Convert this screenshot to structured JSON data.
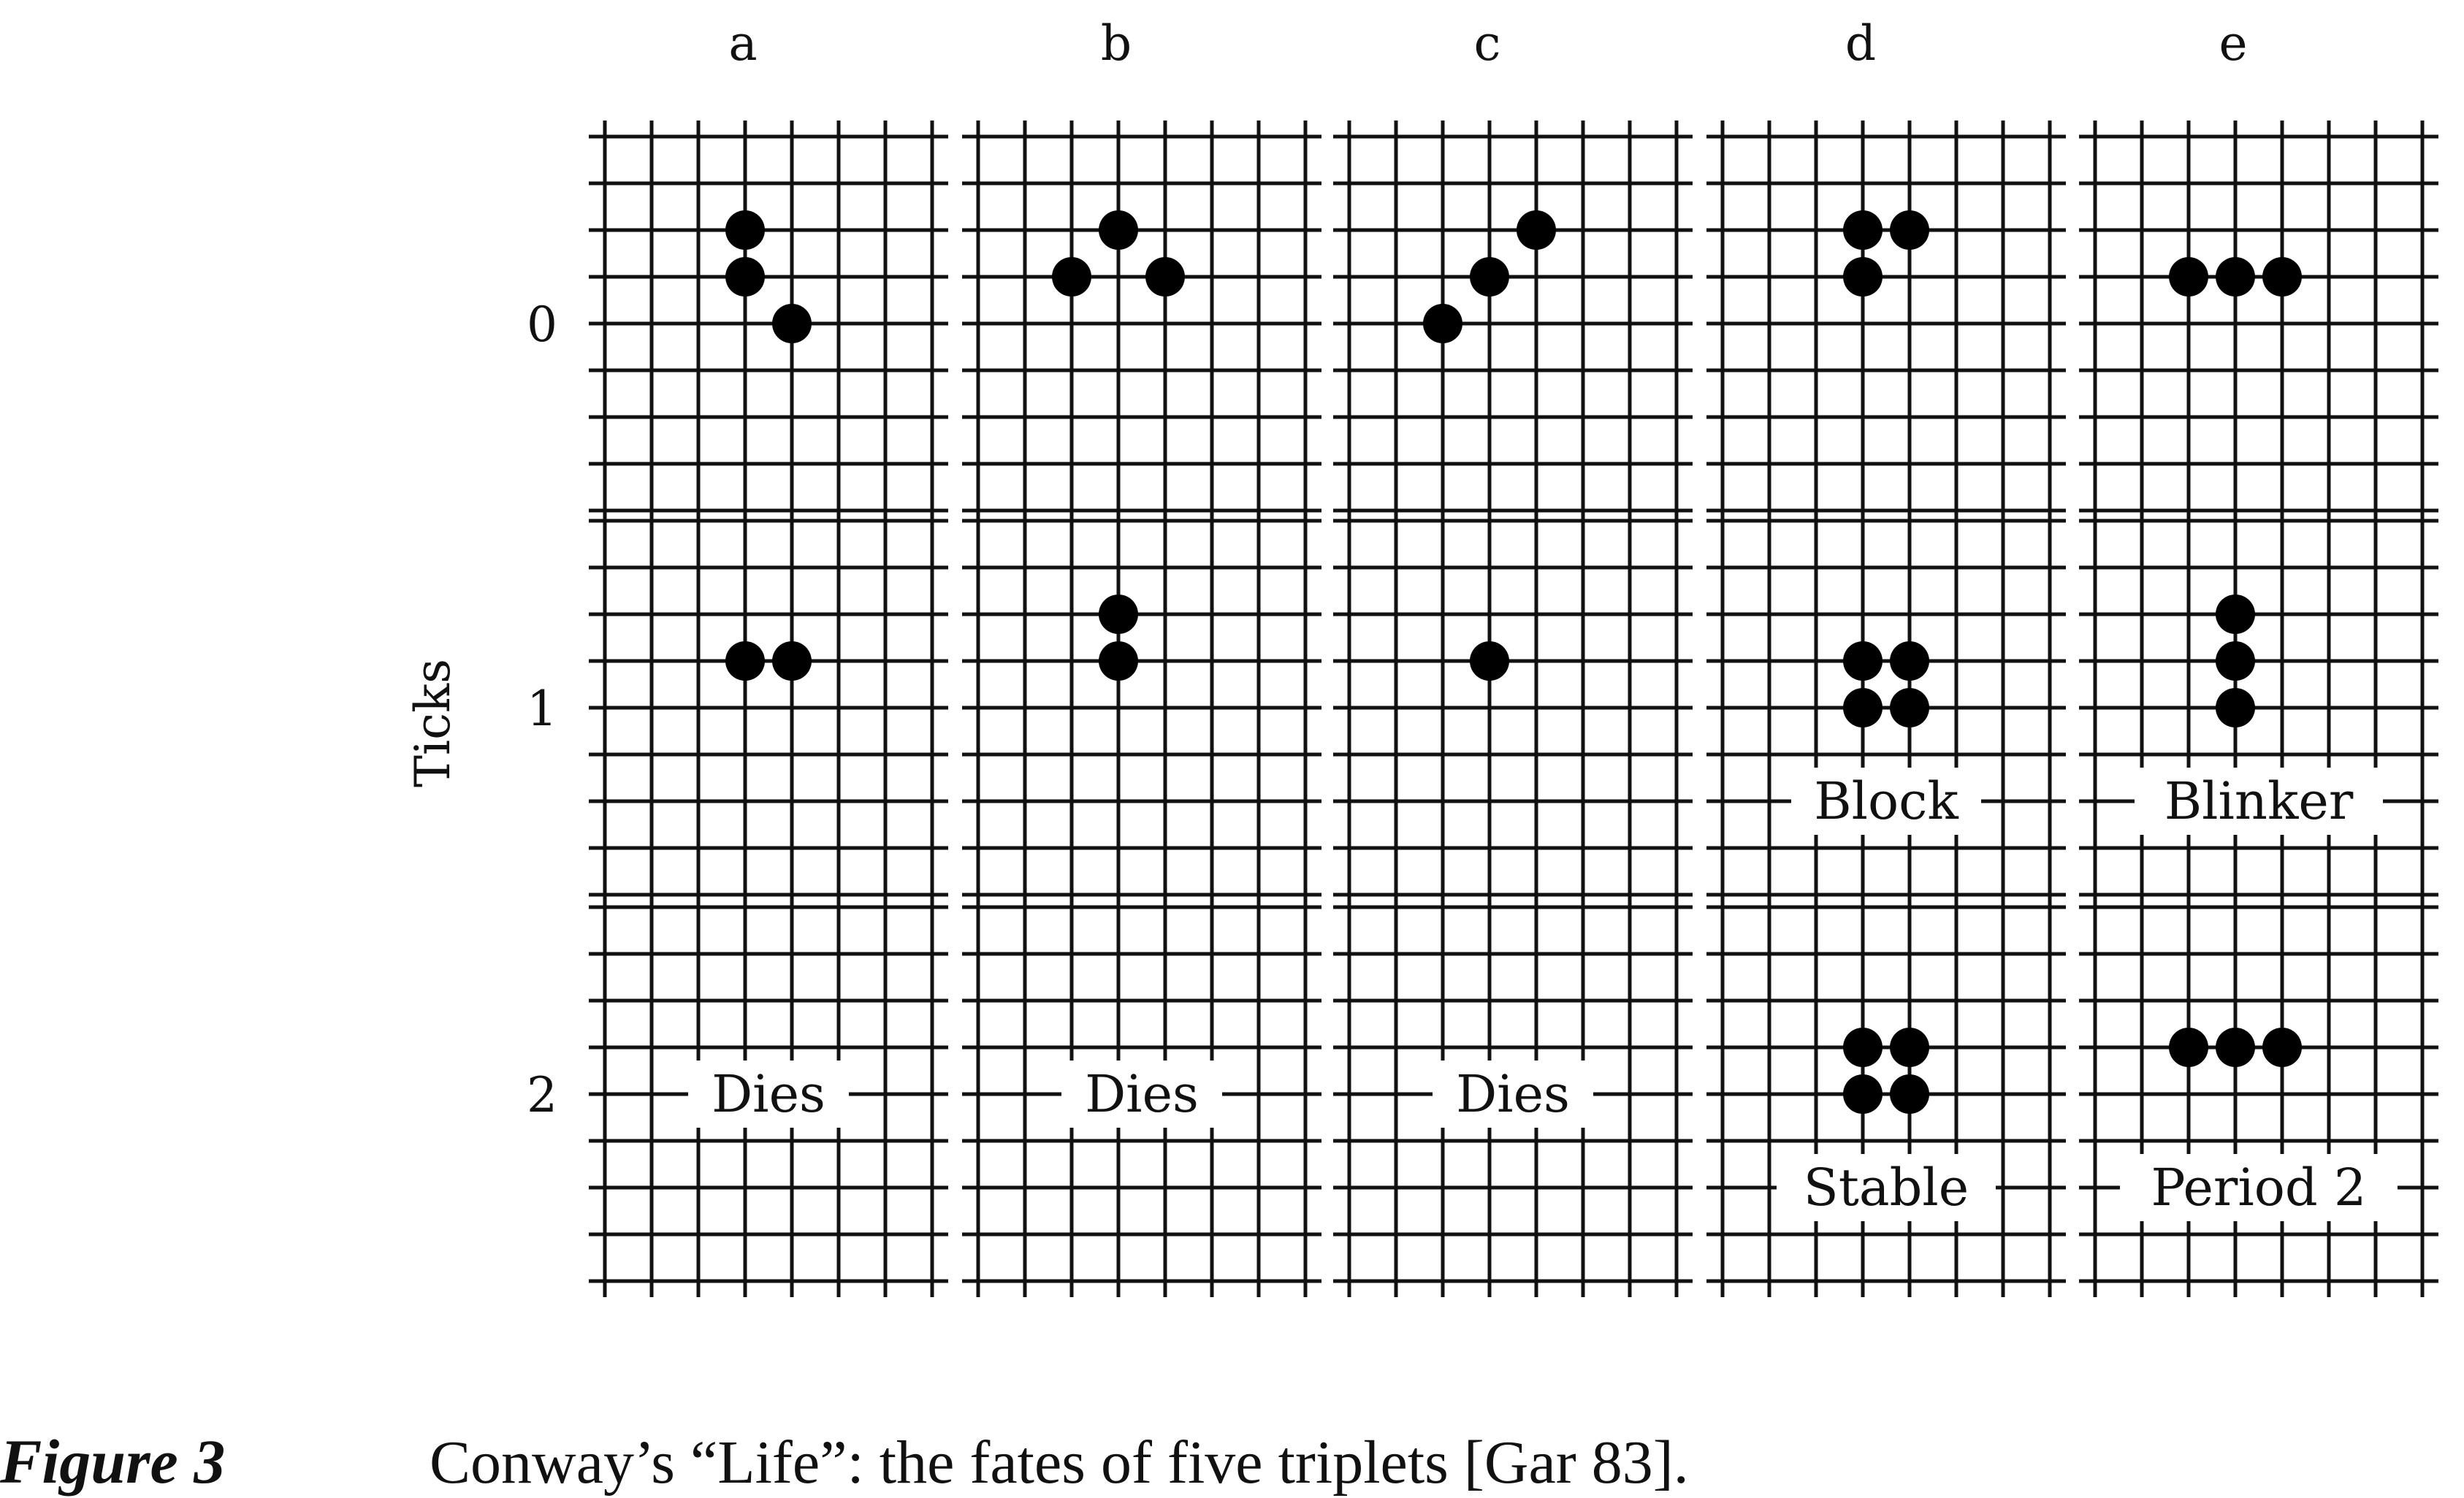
{
  "figure": {
    "columns": [
      "a",
      "b",
      "c",
      "d",
      "e"
    ],
    "rows": [
      "0",
      "1",
      "2"
    ],
    "axis_label": "Ticks",
    "caption_lead": "Figure 3",
    "caption_text": "Conway’s “Life”: the fates of five triplets [Gar 83]."
  },
  "grid": {
    "cols": 7,
    "rows": 8
  },
  "panels": [
    {
      "col": "a",
      "tick": "0",
      "label": "",
      "cells": [
        [
          3,
          2
        ],
        [
          3,
          3
        ],
        [
          4,
          4
        ]
      ]
    },
    {
      "col": "b",
      "tick": "0",
      "label": "",
      "cells": [
        [
          3,
          2
        ],
        [
          2,
          3
        ],
        [
          4,
          3
        ]
      ]
    },
    {
      "col": "c",
      "tick": "0",
      "label": "",
      "cells": [
        [
          4,
          2
        ],
        [
          3,
          3
        ],
        [
          2,
          4
        ]
      ]
    },
    {
      "col": "d",
      "tick": "0",
      "label": "",
      "cells": [
        [
          3,
          2
        ],
        [
          4,
          2
        ],
        [
          3,
          3
        ]
      ]
    },
    {
      "col": "e",
      "tick": "0",
      "label": "",
      "cells": [
        [
          2,
          3
        ],
        [
          3,
          3
        ],
        [
          4,
          3
        ]
      ]
    },
    {
      "col": "a",
      "tick": "1",
      "label": "",
      "cells": [
        [
          3,
          3
        ],
        [
          4,
          3
        ]
      ]
    },
    {
      "col": "b",
      "tick": "1",
      "label": "",
      "cells": [
        [
          3,
          2
        ],
        [
          3,
          3
        ]
      ]
    },
    {
      "col": "c",
      "tick": "1",
      "label": "",
      "cells": [
        [
          3,
          3
        ]
      ]
    },
    {
      "col": "d",
      "tick": "1",
      "label": "Block",
      "cells": [
        [
          3,
          3
        ],
        [
          4,
          3
        ],
        [
          3,
          4
        ],
        [
          4,
          4
        ]
      ]
    },
    {
      "col": "e",
      "tick": "1",
      "label": "Blinker",
      "cells": [
        [
          3,
          2
        ],
        [
          3,
          3
        ],
        [
          3,
          4
        ]
      ]
    },
    {
      "col": "a",
      "tick": "2",
      "label": "Dies",
      "cells": []
    },
    {
      "col": "b",
      "tick": "2",
      "label": "Dies",
      "cells": []
    },
    {
      "col": "c",
      "tick": "2",
      "label": "Dies",
      "cells": []
    },
    {
      "col": "d",
      "tick": "2",
      "label": "Stable",
      "cells": [
        [
          3,
          3
        ],
        [
          4,
          3
        ],
        [
          3,
          4
        ],
        [
          4,
          4
        ]
      ]
    },
    {
      "col": "e",
      "tick": "2",
      "label": "Period 2",
      "cells": [
        [
          2,
          3
        ],
        [
          3,
          3
        ],
        [
          4,
          3
        ]
      ]
    }
  ]
}
